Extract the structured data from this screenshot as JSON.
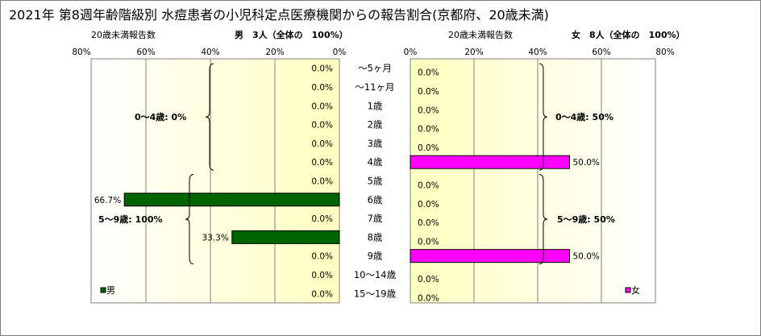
{
  "title": "2021年 第8週年齢階級別 水痘患者の小児科定点医療機関からの報告割合(京都府、20歳未満)",
  "left_header": {
    "label": "20歳未満報告数",
    "summary": "男　3人（全体の　100%）"
  },
  "right_header": {
    "label": "20歳未満報告数",
    "summary": "女　8人（全体の　100%）"
  },
  "colors": {
    "male": "#006400",
    "female": "#ff00ff",
    "plot_bg": "#ffffd0"
  },
  "chart_data": [
    {
      "type": "bar",
      "orientation": "horizontal",
      "direction": "right-to-left",
      "xlim": [
        0,
        80
      ],
      "x_ticks": [
        "80%",
        "60%",
        "40%",
        "20%",
        "0%"
      ],
      "categories": [
        "～5ヶ月",
        "～11ヶ月",
        "1歳",
        "2歳",
        "3歳",
        "4歳",
        "5歳",
        "6歳",
        "7歳",
        "8歳",
        "9歳",
        "10～14歳",
        "15～19歳"
      ],
      "series": [
        {
          "name": "男",
          "values": [
            0,
            0,
            0,
            0,
            0,
            0,
            0,
            66.7,
            0,
            33.3,
            0,
            0,
            0
          ],
          "labels": [
            "0.0%",
            "0.0%",
            "0.0%",
            "0.0%",
            "0.0%",
            "0.0%",
            "0.0%",
            "66.7%",
            "0.0%",
            "33.3%",
            "0.0%",
            "0.0%",
            "0.0%"
          ]
        }
      ],
      "annotations": [
        {
          "text": "0～4歳: 0%"
        },
        {
          "text": "5～9歳: 100%"
        }
      ],
      "legend": "bottom-left"
    },
    {
      "type": "bar",
      "orientation": "horizontal",
      "direction": "left-to-right",
      "xlim": [
        0,
        80
      ],
      "x_ticks": [
        "0%",
        "20%",
        "40%",
        "60%",
        "80%"
      ],
      "categories": [
        "～5ヶ月",
        "～11ヶ月",
        "1歳",
        "2歳",
        "3歳",
        "4歳",
        "5歳",
        "6歳",
        "7歳",
        "8歳",
        "9歳",
        "10～14歳",
        "15～19歳"
      ],
      "series": [
        {
          "name": "女",
          "values": [
            0,
            0,
            0,
            0,
            0,
            50.0,
            0,
            0,
            0,
            0,
            50.0,
            0,
            0
          ],
          "labels": [
            "0.0%",
            "0.0%",
            "0.0%",
            "0.0%",
            "0.0%",
            "50.0%",
            "0.0%",
            "0.0%",
            "0.0%",
            "0.0%",
            "50.0%",
            "0.0%",
            "0.0%"
          ]
        }
      ],
      "annotations": [
        {
          "text": "0～4歳: 50%"
        },
        {
          "text": "5～9歳: 50%"
        }
      ],
      "legend": "bottom-right"
    }
  ]
}
